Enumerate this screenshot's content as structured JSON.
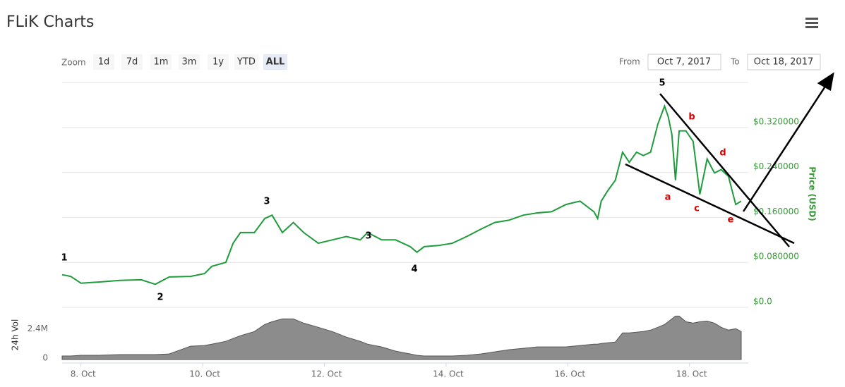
{
  "header": {
    "title": "FLiK Charts"
  },
  "toolbar": {
    "zoom_label": "Zoom",
    "buttons": [
      "1d",
      "7d",
      "1m",
      "3m",
      "1y",
      "YTD",
      "ALL"
    ],
    "active": "ALL",
    "from_label": "From",
    "from": "Oct 7, 2017",
    "to_label": "To",
    "to": "Oct 18, 2017"
  },
  "chart_data": [
    {
      "type": "line",
      "y_label": "Price (USD)",
      "color": "#1e9c3c",
      "x": [
        7.69,
        7.83,
        8.0,
        8.29,
        8.64,
        8.99,
        9.22,
        9.45,
        9.8,
        10.03,
        10.15,
        10.38,
        10.5,
        10.62,
        10.85,
        11.02,
        11.14,
        11.31,
        11.49,
        11.66,
        11.9,
        12.13,
        12.36,
        12.59,
        12.71,
        12.94,
        13.17,
        13.41,
        13.52,
        13.64,
        13.87,
        14.1,
        14.34,
        14.57,
        14.8,
        15.03,
        15.27,
        15.5,
        15.73,
        15.97,
        16.2,
        16.43,
        16.49,
        16.55,
        16.66,
        16.78,
        16.9,
        17.01,
        17.13,
        17.24,
        17.36,
        17.48,
        17.59,
        17.65,
        17.71,
        17.77,
        17.83,
        17.94,
        18.06,
        18.17,
        18.29,
        18.41,
        18.52,
        18.64,
        18.76,
        18.85
      ],
      "values": [
        0.058,
        0.055,
        0.043,
        0.045,
        0.048,
        0.049,
        0.041,
        0.054,
        0.055,
        0.06,
        0.073,
        0.08,
        0.114,
        0.133,
        0.133,
        0.158,
        0.164,
        0.133,
        0.151,
        0.133,
        0.114,
        0.12,
        0.126,
        0.12,
        0.133,
        0.12,
        0.12,
        0.108,
        0.098,
        0.108,
        0.11,
        0.114,
        0.126,
        0.139,
        0.151,
        0.155,
        0.164,
        0.168,
        0.17,
        0.183,
        0.189,
        0.17,
        0.158,
        0.189,
        0.208,
        0.226,
        0.276,
        0.258,
        0.276,
        0.27,
        0.276,
        0.326,
        0.358,
        0.339,
        0.308,
        0.226,
        0.314,
        0.314,
        0.295,
        0.201,
        0.264,
        0.239,
        0.245,
        0.233,
        0.183,
        0.189
      ],
      "xlim": [
        7.69,
        18.85
      ],
      "ylim": [
        0,
        0.4
      ],
      "yticks": [
        {
          "value": 0,
          "label": "$0.0"
        },
        {
          "value": 0.08,
          "label": "$0.080000"
        },
        {
          "value": 0.16,
          "label": "$0.160000"
        },
        {
          "value": 0.24,
          "label": "$0.240000"
        },
        {
          "value": 0.32,
          "label": "$0.320000"
        }
      ],
      "grid": true,
      "annotations": [
        {
          "text": "1",
          "color": "#000000"
        },
        {
          "text": "2",
          "color": "#000000"
        },
        {
          "text": "3",
          "color": "#000000"
        },
        {
          "text": "3",
          "color": "#000000"
        },
        {
          "text": "4",
          "color": "#000000"
        },
        {
          "text": "5",
          "color": "#000000"
        },
        {
          "text": "a",
          "color": "#dd0000"
        },
        {
          "text": "b",
          "color": "#dd0000"
        },
        {
          "text": "c",
          "color": "#dd0000"
        },
        {
          "text": "d",
          "color": "#dd0000"
        },
        {
          "text": "e",
          "color": "#dd0000"
        }
      ]
    },
    {
      "type": "area",
      "y_label": "24h Vol",
      "color": "#8c8c8c",
      "x": [
        7.69,
        7.83,
        8.0,
        8.29,
        8.64,
        8.99,
        9.22,
        9.45,
        9.8,
        10.03,
        10.15,
        10.38,
        10.5,
        10.62,
        10.85,
        11.02,
        11.14,
        11.31,
        11.49,
        11.66,
        11.9,
        12.13,
        12.36,
        12.59,
        12.71,
        12.94,
        13.17,
        13.41,
        13.52,
        13.64,
        13.87,
        14.1,
        14.34,
        14.57,
        14.8,
        15.03,
        15.27,
        15.5,
        15.73,
        15.97,
        16.2,
        16.43,
        16.49,
        16.55,
        16.66,
        16.78,
        16.9,
        17.01,
        17.13,
        17.24,
        17.36,
        17.48,
        17.59,
        17.65,
        17.71,
        17.77,
        17.83,
        17.94,
        18.06,
        18.17,
        18.29,
        18.41,
        18.52,
        18.64,
        18.76,
        18.85
      ],
      "values": [
        286000,
        286000,
        343000,
        343000,
        400000,
        400000,
        400000,
        457000,
        1086000,
        1143000,
        1257000,
        1486000,
        1714000,
        1943000,
        2286000,
        2857000,
        3086000,
        3314000,
        3314000,
        2971000,
        2629000,
        2286000,
        1829000,
        1486000,
        1257000,
        1029000,
        686000,
        457000,
        343000,
        286000,
        286000,
        286000,
        343000,
        457000,
        629000,
        800000,
        914000,
        1029000,
        1029000,
        1029000,
        1143000,
        1257000,
        1257000,
        1314000,
        1371000,
        1429000,
        2171000,
        2171000,
        2229000,
        2286000,
        2400000,
        2629000,
        2857000,
        3086000,
        3314000,
        3543000,
        3543000,
        3086000,
        2971000,
        3086000,
        3143000,
        2971000,
        2629000,
        2400000,
        2514000,
        2286000
      ],
      "xlim": [
        7.69,
        18.85
      ],
      "ylim": [
        0,
        4200000
      ],
      "yticks": [
        0,
        {
          "value": 2400000,
          "label": "2.4M"
        }
      ],
      "xticks": [
        {
          "value": 8,
          "label": "8. Oct"
        },
        {
          "value": 10,
          "label": "10. Oct"
        },
        {
          "value": 12,
          "label": "12. Oct"
        },
        {
          "value": 14,
          "label": "14. Oct"
        },
        {
          "value": 16,
          "label": "16. Oct"
        },
        {
          "value": 18,
          "label": "18. Oct"
        }
      ]
    }
  ]
}
